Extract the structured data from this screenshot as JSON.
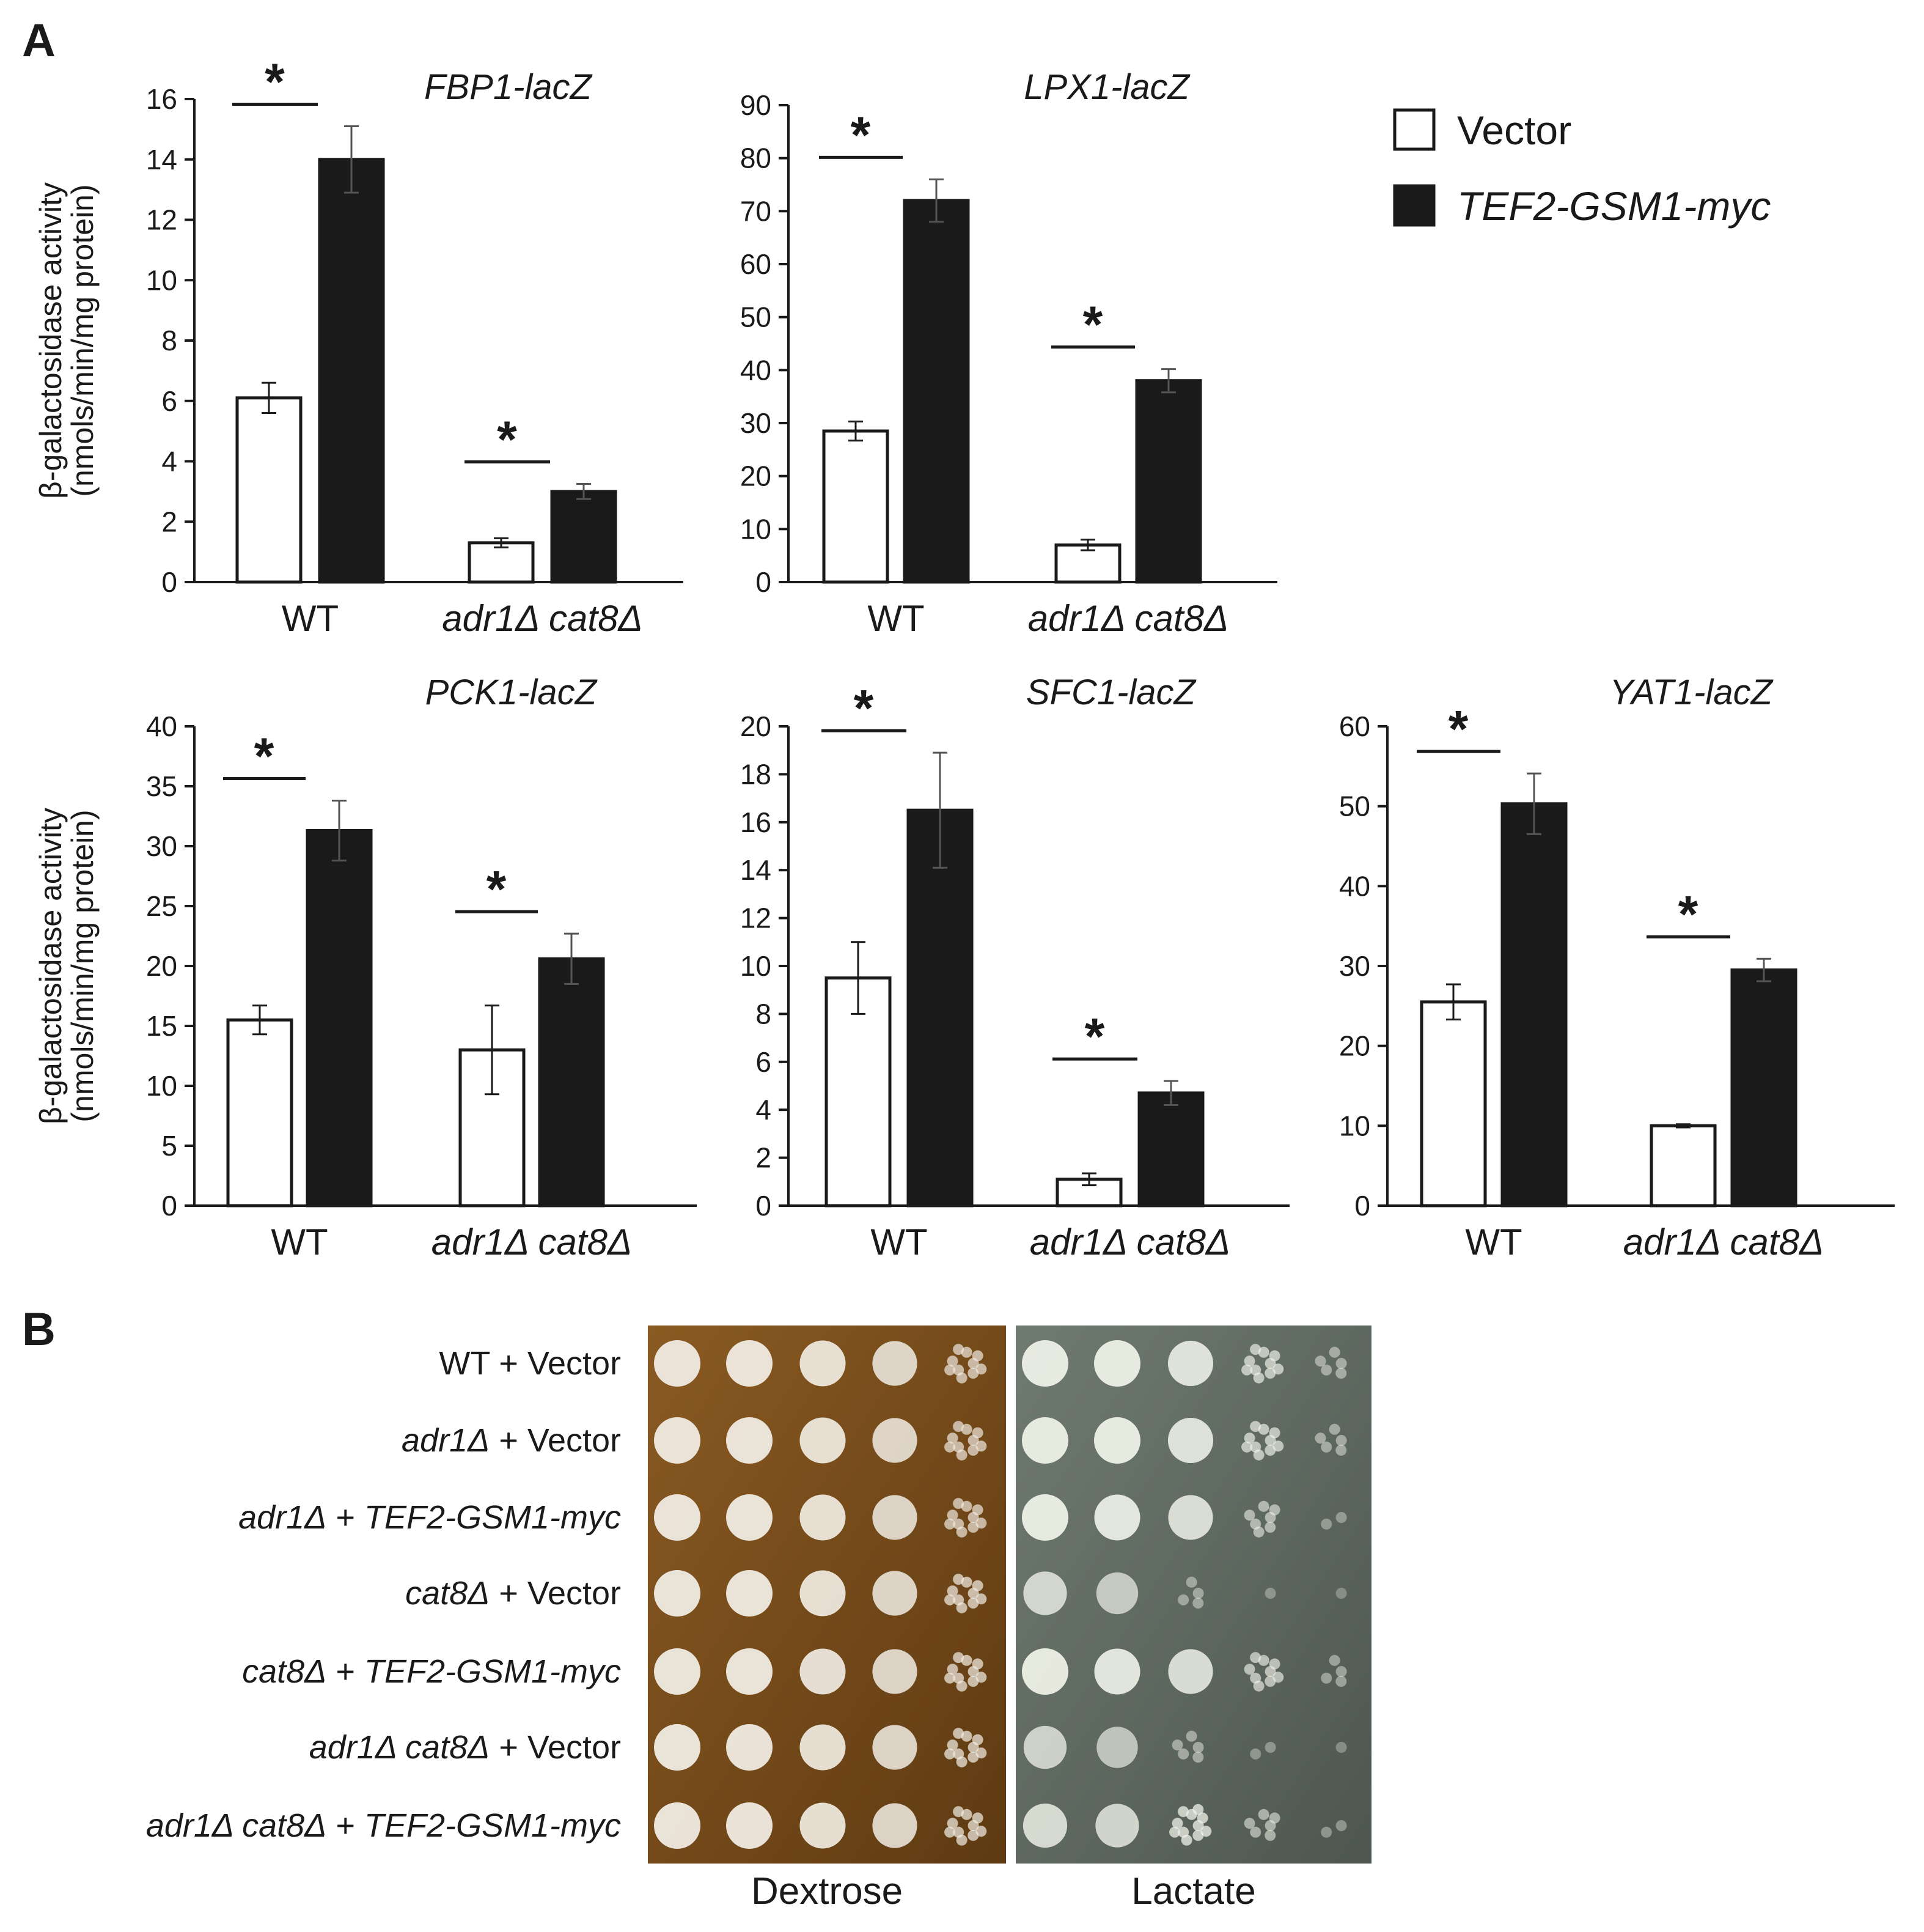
{
  "panel_labels": {
    "a": "A",
    "b": "B"
  },
  "legend": {
    "items": [
      {
        "label": "Vector",
        "italic": false,
        "fill": "#ffffff"
      },
      {
        "label": "TEF2-GSM1-myc",
        "italic": true,
        "fill": "#1a1a1a"
      }
    ]
  },
  "colors": {
    "vector": "#ffffff",
    "gsm1": "#1a1a1a",
    "axis": "#1a1a1a",
    "dextrose_plate": "#8a5a22",
    "lactate_plate": "#6f7a70"
  },
  "chart_data": [
    {
      "type": "bar",
      "title": "FBP1-lacZ",
      "ylabel": [
        "β-galactosidase activity",
        "(nmols/min/mg protein)"
      ],
      "ylim": [
        0,
        16
      ],
      "yticks": [
        "0",
        "2",
        "4",
        "6",
        "8",
        "10",
        "12",
        "14",
        "16"
      ],
      "categories": [
        {
          "label": "WT",
          "italic": false
        },
        {
          "label": "adr1Δ cat8Δ",
          "italic": true
        }
      ],
      "series": [
        {
          "name": "Vector",
          "values": [
            6.1,
            1.3
          ],
          "errors": [
            0.5,
            0.15
          ]
        },
        {
          "name": "TEF2-GSM1-myc",
          "values": [
            14.0,
            3.0
          ],
          "errors": [
            1.1,
            0.25
          ]
        }
      ],
      "significance": [
        "*",
        "*"
      ]
    },
    {
      "type": "bar",
      "title": "LPX1-lacZ",
      "ylabel": [],
      "ylim": [
        0,
        90
      ],
      "yticks": [
        "0",
        "10",
        "20",
        "30",
        "40",
        "50",
        "60",
        "70",
        "80",
        "90"
      ],
      "categories": [
        {
          "label": "WT",
          "italic": false
        },
        {
          "label": "adr1Δ cat8Δ",
          "italic": true
        }
      ],
      "series": [
        {
          "name": "Vector",
          "values": [
            28.5,
            7.0
          ],
          "errors": [
            1.8,
            1.0
          ]
        },
        {
          "name": "TEF2-GSM1-myc",
          "values": [
            72.0,
            38.0
          ],
          "errors": [
            4.0,
            2.2
          ]
        }
      ],
      "significance": [
        "*",
        "*"
      ]
    },
    {
      "type": "bar",
      "title": "PCK1-lacZ",
      "ylabel": [
        "β-galactosidase activity",
        "(nmols/min/mg protein)"
      ],
      "ylim": [
        0,
        40
      ],
      "yticks": [
        "0",
        "5",
        "10",
        "15",
        "20",
        "25",
        "30",
        "35",
        "40"
      ],
      "categories": [
        {
          "label": "WT",
          "italic": false
        },
        {
          "label": "adr1Δ cat8Δ",
          "italic": true
        }
      ],
      "series": [
        {
          "name": "Vector",
          "values": [
            15.5,
            13.0
          ],
          "errors": [
            1.2,
            3.7
          ]
        },
        {
          "name": "TEF2-GSM1-myc",
          "values": [
            31.3,
            20.6
          ],
          "errors": [
            2.5,
            2.1
          ]
        }
      ],
      "significance": [
        "*",
        "*"
      ]
    },
    {
      "type": "bar",
      "title": "SFC1-lacZ",
      "ylabel": [],
      "ylim": [
        0,
        20
      ],
      "yticks": [
        "0",
        "2",
        "4",
        "6",
        "8",
        "10",
        "12",
        "14",
        "16",
        "18",
        "20"
      ],
      "categories": [
        {
          "label": "WT",
          "italic": false
        },
        {
          "label": "adr1Δ cat8Δ",
          "italic": true
        }
      ],
      "series": [
        {
          "name": "Vector",
          "values": [
            9.5,
            1.1
          ],
          "errors": [
            1.5,
            0.25
          ]
        },
        {
          "name": "TEF2-GSM1-myc",
          "values": [
            16.5,
            4.7
          ],
          "errors": [
            2.4,
            0.5
          ]
        }
      ],
      "significance": [
        "*",
        "*"
      ]
    },
    {
      "type": "bar",
      "title": "YAT1-lacZ",
      "ylabel": [],
      "ylim": [
        0,
        60
      ],
      "yticks": [
        "0",
        "10",
        "20",
        "30",
        "40",
        "50",
        "60"
      ],
      "categories": [
        {
          "label": "WT",
          "italic": false
        },
        {
          "label": "adr1Δ cat8Δ",
          "italic": true
        }
      ],
      "series": [
        {
          "name": "Vector",
          "values": [
            25.5,
            10.0
          ],
          "errors": [
            2.2,
            0.2
          ]
        },
        {
          "name": "TEF2-GSM1-myc",
          "values": [
            50.3,
            29.5
          ],
          "errors": [
            3.8,
            1.4
          ]
        }
      ],
      "significance": [
        "*",
        "*"
      ]
    }
  ],
  "spot_assay": {
    "rows": [
      [
        {
          "t": "WT",
          "i": false
        },
        {
          "t": " + Vector",
          "i": false
        }
      ],
      [
        {
          "t": "adr1Δ",
          "i": true
        },
        {
          "t": " + Vector",
          "i": false
        }
      ],
      [
        {
          "t": "adr1Δ",
          "i": true
        },
        {
          "t": " + ",
          "i": false
        },
        {
          "t": "TEF2-GSM1-myc",
          "i": true
        }
      ],
      [
        {
          "t": "cat8Δ",
          "i": true
        },
        {
          "t": " +  Vector",
          "i": false
        }
      ],
      [
        {
          "t": "cat8Δ",
          "i": true
        },
        {
          "t": " + ",
          "i": false
        },
        {
          "t": "TEF2-GSM1-myc",
          "i": true
        }
      ],
      [
        {
          "t": "adr1Δ cat8Δ",
          "i": true
        },
        {
          "t": " +  Vector",
          "i": false
        }
      ],
      [
        {
          "t": "adr1Δ cat8Δ",
          "i": true
        },
        {
          "t": " + ",
          "i": false
        },
        {
          "t": "TEF2-GSM1-myc",
          "i": true
        }
      ]
    ],
    "media": [
      "Dextrose",
      "Lactate"
    ],
    "growth": {
      "Dextrose": [
        [
          1,
          1,
          0.95,
          0.85,
          0.6
        ],
        [
          1,
          1,
          0.95,
          0.85,
          0.6
        ],
        [
          1,
          1,
          0.95,
          0.85,
          0.6
        ],
        [
          1,
          1,
          0.95,
          0.85,
          0.65
        ],
        [
          1,
          1,
          0.95,
          0.85,
          0.65
        ],
        [
          1,
          1,
          0.95,
          0.85,
          0.65
        ],
        [
          1,
          1,
          0.95,
          0.85,
          0.65
        ]
      ],
      "Lactate": [
        [
          1,
          1,
          0.9,
          0.6,
          0.3
        ],
        [
          1,
          1,
          0.9,
          0.6,
          0.3
        ],
        [
          1,
          0.95,
          0.85,
          0.45,
          0.15
        ],
        [
          0.75,
          0.6,
          0.25,
          0.08,
          0.03
        ],
        [
          1,
          0.95,
          0.85,
          0.55,
          0.25
        ],
        [
          0.7,
          0.55,
          0.3,
          0.12,
          0.05
        ],
        [
          0.8,
          0.75,
          0.7,
          0.4,
          0.15
        ]
      ]
    }
  }
}
